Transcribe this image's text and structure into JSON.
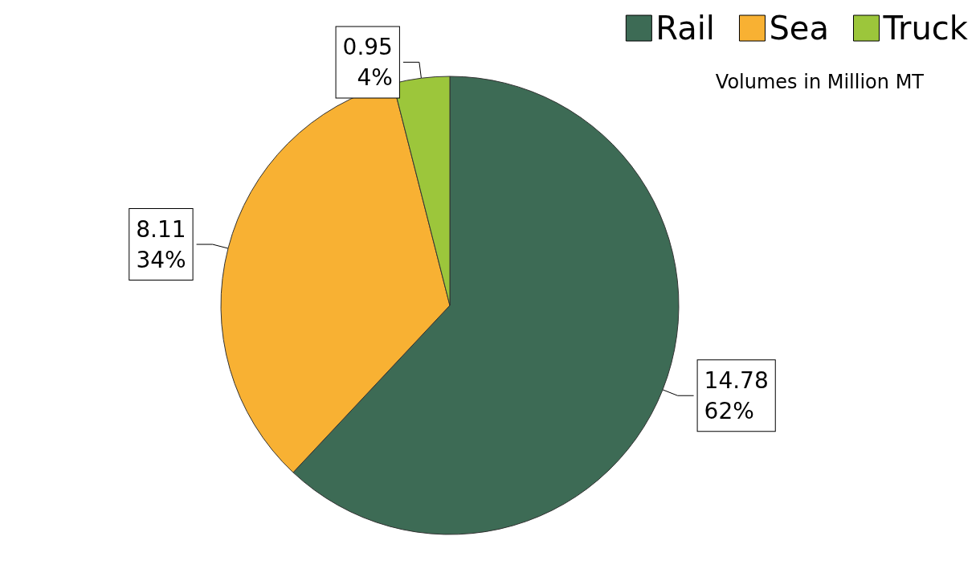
{
  "chart_data": {
    "type": "pie",
    "categories": [
      "Rail",
      "Sea",
      "Truck"
    ],
    "values": [
      14.78,
      8.11,
      0.95
    ],
    "colors": [
      "#3d6b55",
      "#f8b133",
      "#9cc63b"
    ],
    "value_labels": [
      "14.78\n62%",
      "8.11\n34%",
      "0.95\n4%"
    ],
    "annotations": [
      "Volumes in Million MT"
    ],
    "legend": "top right"
  }
}
